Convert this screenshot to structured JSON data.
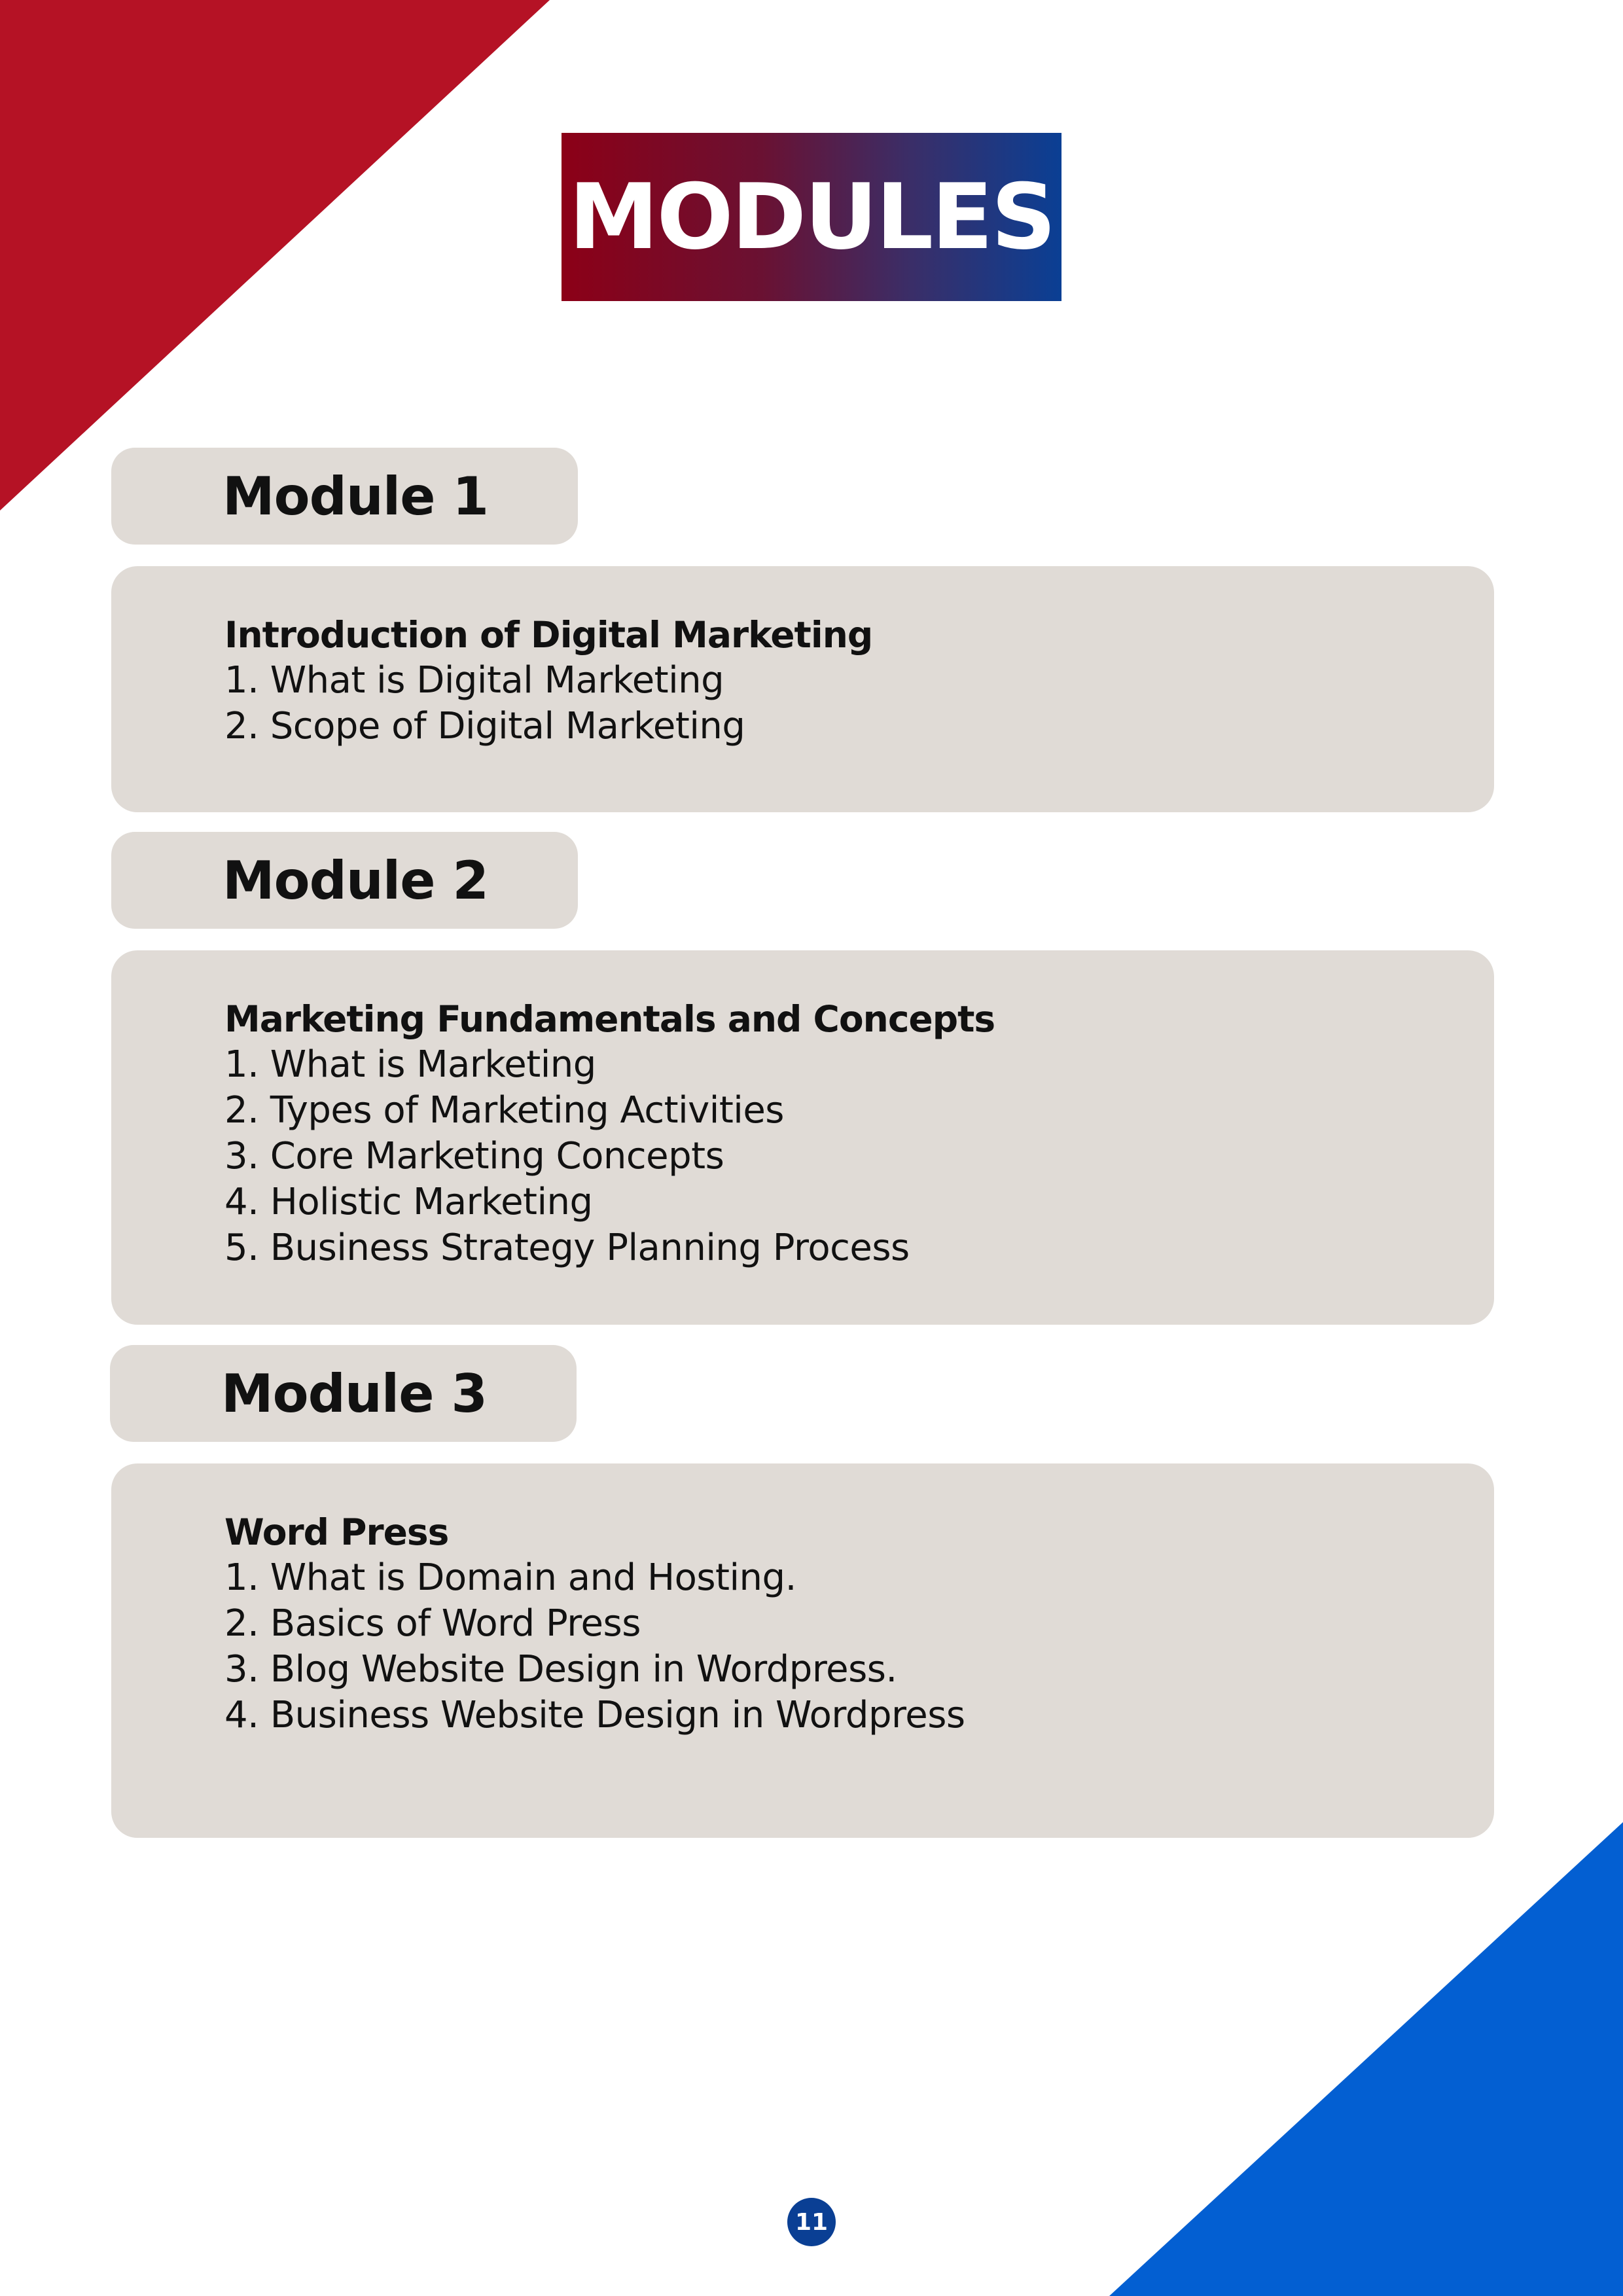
{
  "title": "MODULES",
  "modules": [
    {
      "label": "Module 1",
      "topic": "Introduction of Digital Marketing",
      "items": [
        "1. What is Digital Marketing",
        "2. Scope of Digital Marketing"
      ]
    },
    {
      "label": "Module 2",
      "topic": "Marketing Fundamentals and Concepts",
      "items": [
        "1. What is Marketing",
        "2. Types of Marketing Activities",
        "3. Core Marketing Concepts",
        "4. Holistic Marketing",
        "5. Business Strategy Planning Process"
      ]
    },
    {
      "label": "Module 3",
      "topic": "Word Press",
      "items": [
        "1. What is Domain and Hosting.",
        "2. Basics of Word Press",
        "3. Blog Website Design in Wordpress.",
        "4. Business Website Design in Wordpress"
      ]
    }
  ],
  "page_number": "11",
  "colors": {
    "red_corner": "#b51225",
    "blue_corner": "#035fd2",
    "card_bg": "#e0dbd6",
    "title_gradient_start": "#8c0017",
    "title_gradient_end": "#0a3f94",
    "page_badge": "#0a3f94"
  }
}
